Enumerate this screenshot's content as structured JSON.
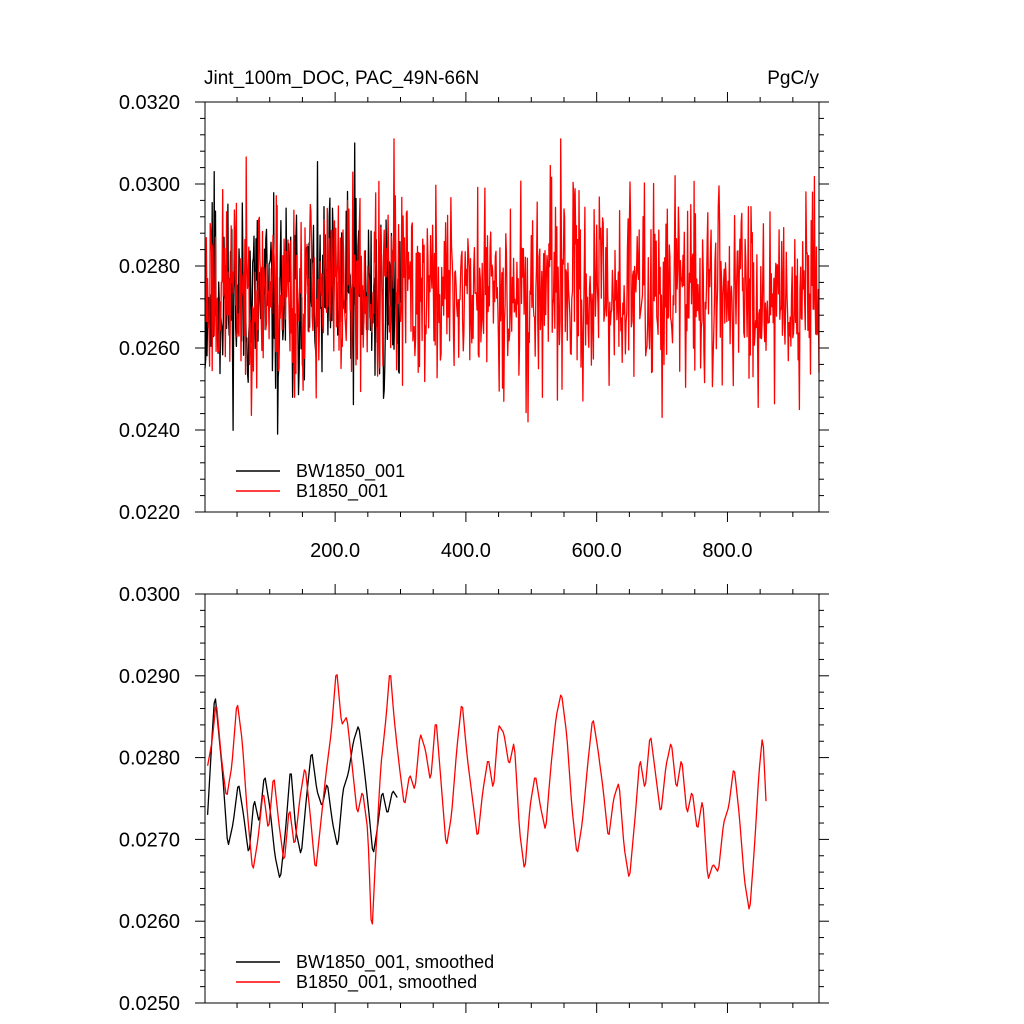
{
  "chart_data": [
    {
      "type": "line",
      "title": "Jint_100m_DOC, PAC_49N-66N",
      "units": "PgC/y",
      "xlim": [
        1,
        940
      ],
      "ylim": [
        0.022,
        0.032
      ],
      "xticks": [
        200,
        400,
        600,
        800
      ],
      "xtick_labels": [
        "200.0",
        "400.0",
        "600.0",
        "800.0"
      ],
      "yticks": [
        0.022,
        0.024,
        0.026,
        0.028,
        0.03,
        0.032
      ],
      "ytick_labels": [
        "0.0220",
        "0.0240",
        "0.0260",
        "0.0280",
        "0.0300",
        "0.0320"
      ],
      "legend": "bottom-left",
      "series": [
        {
          "name": "BW1850_001",
          "color": "#000000",
          "x_range": [
            1,
            300
          ],
          "mean": 0.0272,
          "noise": 0.0013,
          "min": 0.0239,
          "max": 0.031,
          "seed": 11,
          "key_points": [
            [
              1,
              0.0255
            ],
            [
              15,
              0.0303
            ],
            [
              30,
              0.0287
            ],
            [
              112,
              0.0239
            ],
            [
              135,
              0.0248
            ],
            [
              230,
              0.031
            ],
            [
              300,
              0.0271
            ]
          ]
        },
        {
          "name": "B1850_001",
          "color": "#ff0000",
          "x_range": [
            1,
            940
          ],
          "mean": 0.0274,
          "noise": 0.0013,
          "min": 0.0242,
          "max": 0.0311,
          "seed": 23,
          "key_points": [
            [
              1,
              0.0272
            ],
            [
              10,
              0.0288
            ],
            [
              290,
              0.0311
            ],
            [
              495,
              0.0242
            ],
            [
              545,
              0.0311
            ],
            [
              720,
              0.0302
            ],
            [
              910,
              0.0245
            ],
            [
              930,
              0.0298
            ],
            [
              940,
              0.0254
            ]
          ]
        }
      ]
    },
    {
      "type": "line",
      "xlim": [
        1,
        940
      ],
      "ylim": [
        0.025,
        0.03
      ],
      "xticks": [
        200,
        400,
        600,
        800
      ],
      "yticks": [
        0.025,
        0.026,
        0.027,
        0.028,
        0.029,
        0.03
      ],
      "ytick_labels": [
        "0.0250",
        "0.0260",
        "0.0270",
        "0.0280",
        "0.0290",
        "0.0300"
      ],
      "legend": "bottom-left",
      "series": [
        {
          "name": "BW1850_001, smoothed",
          "color": "#000000",
          "key_points": [
            [
              5,
              0.0273
            ],
            [
              10,
              0.028
            ],
            [
              16,
              0.0288
            ],
            [
              22,
              0.0283
            ],
            [
              28,
              0.0278
            ],
            [
              36,
              0.0269
            ],
            [
              44,
              0.0272
            ],
            [
              52,
              0.0277
            ],
            [
              60,
              0.0273
            ],
            [
              68,
              0.0268
            ],
            [
              76,
              0.0275
            ],
            [
              84,
              0.0272
            ],
            [
              92,
              0.0278
            ],
            [
              100,
              0.0274
            ],
            [
              108,
              0.0268
            ],
            [
              116,
              0.0265
            ],
            [
              124,
              0.0271
            ],
            [
              132,
              0.0279
            ],
            [
              140,
              0.0271
            ],
            [
              148,
              0.0268
            ],
            [
              156,
              0.0275
            ],
            [
              164,
              0.0281
            ],
            [
              172,
              0.0276
            ],
            [
              180,
              0.0274
            ],
            [
              188,
              0.0277
            ],
            [
              196,
              0.0272
            ],
            [
              204,
              0.0269
            ],
            [
              212,
              0.0276
            ],
            [
              220,
              0.0278
            ],
            [
              228,
              0.0282
            ],
            [
              236,
              0.0284
            ],
            [
              244,
              0.0279
            ],
            [
              252,
              0.0273
            ],
            [
              258,
              0.0268
            ],
            [
              264,
              0.0271
            ],
            [
              272,
              0.0276
            ],
            [
              280,
              0.0273
            ],
            [
              288,
              0.0276
            ],
            [
              296,
              0.0275
            ]
          ]
        },
        {
          "name": "B1850_001, smoothed",
          "color": "#ff0000",
          "key_points": [
            [
              5,
              0.0279
            ],
            [
              12,
              0.0282
            ],
            [
              18,
              0.0287
            ],
            [
              26,
              0.028
            ],
            [
              34,
              0.0275
            ],
            [
              42,
              0.0279
            ],
            [
              50,
              0.0287
            ],
            [
              58,
              0.0282
            ],
            [
              66,
              0.0273
            ],
            [
              74,
              0.0266
            ],
            [
              82,
              0.027
            ],
            [
              90,
              0.0276
            ],
            [
              98,
              0.0271
            ],
            [
              106,
              0.0278
            ],
            [
              114,
              0.0272
            ],
            [
              122,
              0.0267
            ],
            [
              130,
              0.0274
            ],
            [
              138,
              0.0269
            ],
            [
              146,
              0.0275
            ],
            [
              154,
              0.0279
            ],
            [
              162,
              0.0273
            ],
            [
              170,
              0.0266
            ],
            [
              178,
              0.0272
            ],
            [
              186,
              0.0278
            ],
            [
              194,
              0.0283
            ],
            [
              202,
              0.0291
            ],
            [
              210,
              0.0284
            ],
            [
              218,
              0.0285
            ],
            [
              226,
              0.0279
            ],
            [
              234,
              0.0273
            ],
            [
              242,
              0.0276
            ],
            [
              250,
              0.0271
            ],
            [
              256,
              0.0258
            ],
            [
              262,
              0.0268
            ],
            [
              270,
              0.0279
            ],
            [
              278,
              0.0285
            ],
            [
              284,
              0.0291
            ],
            [
              290,
              0.0285
            ],
            [
              298,
              0.0279
            ],
            [
              306,
              0.0274
            ],
            [
              314,
              0.0278
            ],
            [
              322,
              0.0276
            ],
            [
              330,
              0.0283
            ],
            [
              338,
              0.0281
            ],
            [
              346,
              0.0277
            ],
            [
              354,
              0.0285
            ],
            [
              362,
              0.0277
            ],
            [
              370,
              0.0269
            ],
            [
              378,
              0.0273
            ],
            [
              386,
              0.0281
            ],
            [
              394,
              0.0287
            ],
            [
              402,
              0.028
            ],
            [
              410,
              0.0275
            ],
            [
              418,
              0.027
            ],
            [
              426,
              0.0276
            ],
            [
              434,
              0.028
            ],
            [
              442,
              0.0276
            ],
            [
              450,
              0.0284
            ],
            [
              458,
              0.0283
            ],
            [
              466,
              0.0279
            ],
            [
              474,
              0.0282
            ],
            [
              482,
              0.0271
            ],
            [
              490,
              0.0266
            ],
            [
              498,
              0.0274
            ],
            [
              506,
              0.0278
            ],
            [
              514,
              0.0274
            ],
            [
              522,
              0.0271
            ],
            [
              530,
              0.0279
            ],
            [
              538,
              0.0285
            ],
            [
              546,
              0.0288
            ],
            [
              554,
              0.0283
            ],
            [
              562,
              0.0274
            ],
            [
              570,
              0.0268
            ],
            [
              578,
              0.0272
            ],
            [
              586,
              0.0279
            ],
            [
              594,
              0.0285
            ],
            [
              602,
              0.0281
            ],
            [
              610,
              0.0276
            ],
            [
              618,
              0.027
            ],
            [
              626,
              0.0275
            ],
            [
              634,
              0.0277
            ],
            [
              642,
              0.0269
            ],
            [
              650,
              0.0265
            ],
            [
              658,
              0.0272
            ],
            [
              666,
              0.028
            ],
            [
              674,
              0.0276
            ],
            [
              682,
              0.0283
            ],
            [
              690,
              0.0278
            ],
            [
              698,
              0.0273
            ],
            [
              706,
              0.0279
            ],
            [
              714,
              0.0282
            ],
            [
              722,
              0.0276
            ],
            [
              730,
              0.028
            ],
            [
              738,
              0.0273
            ],
            [
              746,
              0.0276
            ],
            [
              754,
              0.0271
            ],
            [
              762,
              0.0275
            ],
            [
              770,
              0.0265
            ],
            [
              778,
              0.0267
            ],
            [
              786,
              0.0266
            ],
            [
              794,
              0.0272
            ],
            [
              802,
              0.0274
            ],
            [
              810,
              0.0279
            ],
            [
              818,
              0.0273
            ],
            [
              826,
              0.0265
            ],
            [
              834,
              0.0261
            ],
            [
              842,
              0.027
            ],
            [
              848,
              0.0278
            ],
            [
              854,
              0.0283
            ],
            [
              860,
              0.0273
            ]
          ]
        }
      ]
    }
  ]
}
